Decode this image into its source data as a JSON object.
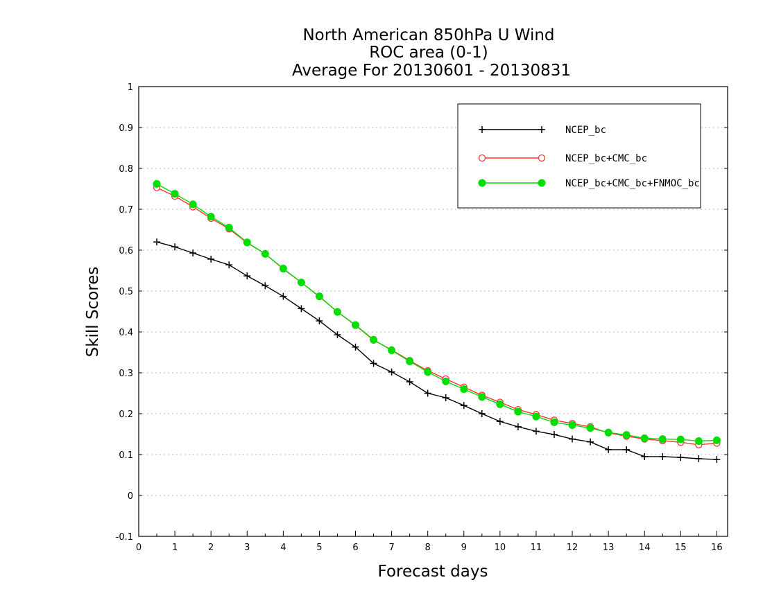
{
  "chart_data": {
    "type": "line",
    "title_lines": [
      "North American 850hPa U Wind",
      "ROC area (0-1)",
      "Average For 20130601 - 20130831"
    ],
    "xlabel": "Forecast days",
    "ylabel": "Skill Scores",
    "xlim": [
      0,
      16.3
    ],
    "ylim": [
      -0.1,
      1
    ],
    "xticks": [
      0,
      1,
      2,
      3,
      4,
      5,
      6,
      7,
      8,
      9,
      10,
      11,
      12,
      13,
      14,
      15,
      16
    ],
    "xtick_labels": [
      "0",
      "1",
      "2",
      "3",
      "4",
      "5",
      "6",
      "7",
      "8",
      "9",
      "10",
      "11",
      "12",
      "13",
      "14",
      "15",
      "16"
    ],
    "yticks": [
      -0.1,
      0,
      0.1,
      0.2,
      0.3,
      0.4,
      0.5,
      0.6,
      0.7,
      0.8,
      0.9,
      1
    ],
    "ytick_labels": [
      "-0.1",
      "0",
      "0.1",
      "0.2",
      "0.3",
      "0.4",
      "0.5",
      "0.6",
      "0.7",
      "0.8",
      "0.9",
      "1"
    ],
    "grid": true,
    "legend_position": "top-right",
    "x": [
      0.5,
      1,
      1.5,
      2,
      2.5,
      3,
      3.5,
      4,
      4.5,
      5,
      5.5,
      6,
      6.5,
      7,
      7.5,
      8,
      8.5,
      9,
      9.5,
      10,
      10.5,
      11,
      11.5,
      12,
      12.5,
      13,
      13.5,
      14,
      14.5,
      15,
      15.5,
      16
    ],
    "series": [
      {
        "name": "NCEP_bc",
        "color": "#000000",
        "marker": "plus",
        "values": [
          0.62,
          0.608,
          0.593,
          0.578,
          0.564,
          0.537,
          0.513,
          0.487,
          0.457,
          0.427,
          0.393,
          0.363,
          0.323,
          0.302,
          0.278,
          0.25,
          0.239,
          0.22,
          0.2,
          0.181,
          0.168,
          0.157,
          0.149,
          0.138,
          0.131,
          0.112,
          0.112,
          0.095,
          0.095,
          0.093,
          0.09,
          0.088
        ]
      },
      {
        "name": "NCEP_bc+CMC_bc",
        "color": "#ff3333",
        "marker": "open-circle",
        "values": [
          0.753,
          0.732,
          0.706,
          0.678,
          0.652,
          0.618,
          0.591,
          0.554,
          0.521,
          0.486,
          0.449,
          0.416,
          0.38,
          0.356,
          0.33,
          0.305,
          0.285,
          0.265,
          0.245,
          0.228,
          0.21,
          0.198,
          0.184,
          0.176,
          0.168,
          0.153,
          0.145,
          0.138,
          0.134,
          0.13,
          0.124,
          0.128
        ]
      },
      {
        "name": "NCEP_bc+CMC_bc+FNMOC_bc",
        "color": "#00dd00",
        "marker": "filled-circle",
        "values": [
          0.762,
          0.738,
          0.712,
          0.682,
          0.655,
          0.619,
          0.591,
          0.555,
          0.521,
          0.487,
          0.449,
          0.417,
          0.381,
          0.355,
          0.328,
          0.302,
          0.279,
          0.26,
          0.241,
          0.223,
          0.205,
          0.193,
          0.179,
          0.172,
          0.165,
          0.154,
          0.148,
          0.14,
          0.138,
          0.137,
          0.133,
          0.135
        ]
      }
    ]
  }
}
